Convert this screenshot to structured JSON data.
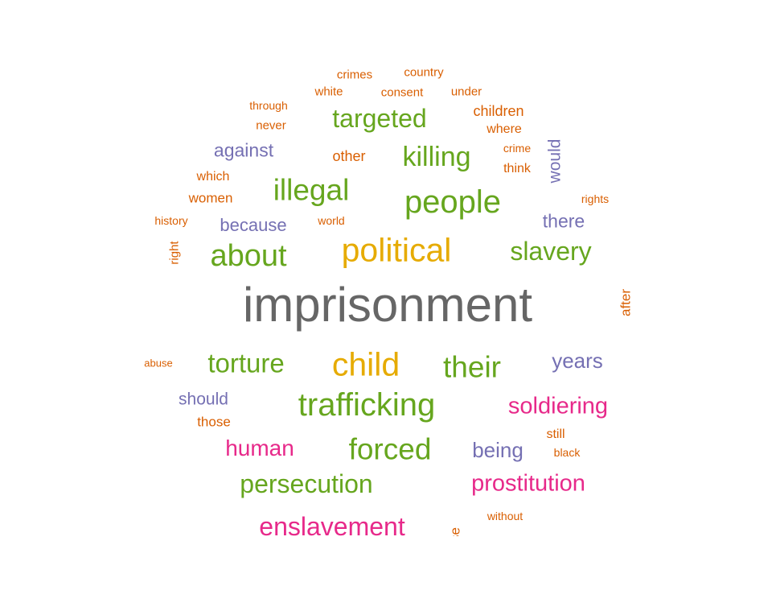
{
  "colors": {
    "dark_gray": "#666666",
    "green": "#66a61e",
    "gold": "#e6ab02",
    "orange": "#d95f02",
    "purple": "#7570b3",
    "magenta": "#e7298a"
  },
  "words": [
    {
      "text": "imprisonment",
      "color": "dark_gray",
      "vertical": false
    },
    {
      "text": "political",
      "color": "gold",
      "vertical": false
    },
    {
      "text": "child",
      "color": "gold",
      "vertical": false
    },
    {
      "text": "people",
      "color": "green",
      "vertical": false
    },
    {
      "text": "trafficking",
      "color": "green",
      "vertical": false
    },
    {
      "text": "illegal",
      "color": "green",
      "vertical": false
    },
    {
      "text": "about",
      "color": "green",
      "vertical": false
    },
    {
      "text": "forced",
      "color": "green",
      "vertical": false
    },
    {
      "text": "their",
      "color": "green",
      "vertical": false
    },
    {
      "text": "torture",
      "color": "green",
      "vertical": false
    },
    {
      "text": "killing",
      "color": "green",
      "vertical": false
    },
    {
      "text": "targeted",
      "color": "green",
      "vertical": false
    },
    {
      "text": "slavery",
      "color": "green",
      "vertical": false
    },
    {
      "text": "persecution",
      "color": "green",
      "vertical": false
    },
    {
      "text": "enslavement",
      "color": "magenta",
      "vertical": false
    },
    {
      "text": "prostitution",
      "color": "magenta",
      "vertical": false
    },
    {
      "text": "soldiering",
      "color": "magenta",
      "vertical": false
    },
    {
      "text": "human",
      "color": "magenta",
      "vertical": false
    },
    {
      "text": "years",
      "color": "purple",
      "vertical": false
    },
    {
      "text": "being",
      "color": "purple",
      "vertical": false
    },
    {
      "text": "there",
      "color": "purple",
      "vertical": false
    },
    {
      "text": "against",
      "color": "purple",
      "vertical": false
    },
    {
      "text": "because",
      "color": "purple",
      "vertical": false
    },
    {
      "text": "should",
      "color": "purple",
      "vertical": false
    },
    {
      "text": "would",
      "color": "purple",
      "vertical": true
    },
    {
      "text": "crimes",
      "color": "orange",
      "vertical": false
    },
    {
      "text": "country",
      "color": "orange",
      "vertical": false
    },
    {
      "text": "white",
      "color": "orange",
      "vertical": false
    },
    {
      "text": "consent",
      "color": "orange",
      "vertical": false
    },
    {
      "text": "under",
      "color": "orange",
      "vertical": false
    },
    {
      "text": "through",
      "color": "orange",
      "vertical": false
    },
    {
      "text": "children",
      "color": "orange",
      "vertical": false
    },
    {
      "text": "never",
      "color": "orange",
      "vertical": false
    },
    {
      "text": "where",
      "color": "orange",
      "vertical": false
    },
    {
      "text": "crime",
      "color": "orange",
      "vertical": false
    },
    {
      "text": "other",
      "color": "orange",
      "vertical": false
    },
    {
      "text": "think",
      "color": "orange",
      "vertical": false
    },
    {
      "text": "which",
      "color": "orange",
      "vertical": false
    },
    {
      "text": "women",
      "color": "orange",
      "vertical": false
    },
    {
      "text": "rights",
      "color": "orange",
      "vertical": false
    },
    {
      "text": "history",
      "color": "orange",
      "vertical": false
    },
    {
      "text": "world",
      "color": "orange",
      "vertical": false
    },
    {
      "text": "right",
      "color": "orange",
      "vertical": true
    },
    {
      "text": "after",
      "color": "orange",
      "vertical": true
    },
    {
      "text": "abuse",
      "color": "orange",
      "vertical": false
    },
    {
      "text": "those",
      "color": "orange",
      "vertical": false
    },
    {
      "text": "still",
      "color": "orange",
      "vertical": false
    },
    {
      "text": "black",
      "color": "orange",
      "vertical": false
    },
    {
      "text": "without",
      "color": "orange",
      "vertical": false
    },
    {
      "text": "se",
      "color": "orange",
      "vertical": true
    }
  ]
}
